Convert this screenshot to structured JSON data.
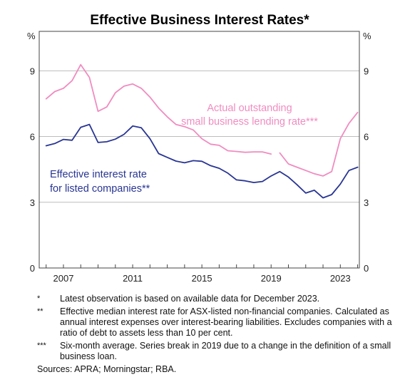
{
  "chart_data": {
    "type": "line",
    "title": "Effective Business Interest Rates*",
    "y_unit_left": "%",
    "y_unit_right": "%",
    "ylim": [
      0,
      10.8
    ],
    "y_ticks": [
      0,
      3,
      6,
      9
    ],
    "xlim": [
      2005.6,
      2024.1
    ],
    "x_ticks": [
      2007,
      2011,
      2015,
      2019,
      2023
    ],
    "grid": true,
    "series": [
      {
        "name": "Actual outstanding small business lending rate***",
        "label_lines": [
          "Actual outstanding",
          "small business lending rate***"
        ],
        "color": "#f08cc0",
        "segments": [
          [
            [
              2006.0,
              7.72
            ],
            [
              2006.5,
              8.05
            ],
            [
              2007.0,
              8.2
            ],
            [
              2007.5,
              8.55
            ],
            [
              2008.0,
              9.28
            ],
            [
              2008.5,
              8.7
            ],
            [
              2009.0,
              7.15
            ],
            [
              2009.5,
              7.35
            ],
            [
              2010.0,
              8.0
            ],
            [
              2010.5,
              8.3
            ],
            [
              2011.0,
              8.4
            ],
            [
              2011.5,
              8.2
            ],
            [
              2012.0,
              7.8
            ],
            [
              2012.5,
              7.3
            ],
            [
              2013.0,
              6.9
            ],
            [
              2013.5,
              6.55
            ],
            [
              2014.0,
              6.45
            ],
            [
              2014.5,
              6.3
            ],
            [
              2015.0,
              5.9
            ],
            [
              2015.5,
              5.65
            ],
            [
              2016.0,
              5.6
            ],
            [
              2016.5,
              5.35
            ],
            [
              2017.0,
              5.32
            ],
            [
              2017.5,
              5.28
            ],
            [
              2018.0,
              5.3
            ],
            [
              2018.5,
              5.3
            ],
            [
              2019.0,
              5.2
            ]
          ],
          [
            [
              2019.5,
              5.25
            ],
            [
              2020.0,
              4.75
            ],
            [
              2020.5,
              4.6
            ],
            [
              2021.0,
              4.45
            ],
            [
              2021.5,
              4.3
            ],
            [
              2022.0,
              4.2
            ],
            [
              2022.5,
              4.4
            ],
            [
              2023.0,
              5.9
            ],
            [
              2023.5,
              6.6
            ],
            [
              2024.0,
              7.1
            ]
          ]
        ]
      },
      {
        "name": "Effective interest rate for listed companies**",
        "label_lines": [
          "Effective interest rate",
          "for listed companies**"
        ],
        "color": "#283593",
        "segments": [
          [
            [
              2006.0,
              5.58
            ],
            [
              2006.5,
              5.68
            ],
            [
              2007.0,
              5.87
            ],
            [
              2007.5,
              5.83
            ],
            [
              2008.0,
              6.42
            ],
            [
              2008.5,
              6.55
            ],
            [
              2009.0,
              5.73
            ],
            [
              2009.5,
              5.76
            ],
            [
              2010.0,
              5.88
            ],
            [
              2010.5,
              6.1
            ],
            [
              2011.0,
              6.48
            ],
            [
              2011.5,
              6.4
            ],
            [
              2012.0,
              5.9
            ],
            [
              2012.5,
              5.22
            ],
            [
              2013.0,
              5.05
            ],
            [
              2013.5,
              4.88
            ],
            [
              2014.0,
              4.8
            ],
            [
              2014.5,
              4.9
            ],
            [
              2015.0,
              4.87
            ],
            [
              2015.5,
              4.67
            ],
            [
              2016.0,
              4.55
            ],
            [
              2016.5,
              4.33
            ],
            [
              2017.0,
              4.02
            ],
            [
              2017.5,
              3.98
            ],
            [
              2018.0,
              3.9
            ],
            [
              2018.5,
              3.95
            ],
            [
              2019.0,
              4.2
            ],
            [
              2019.5,
              4.4
            ],
            [
              2020.0,
              4.15
            ],
            [
              2020.5,
              3.8
            ],
            [
              2021.0,
              3.42
            ],
            [
              2021.5,
              3.55
            ],
            [
              2022.0,
              3.2
            ],
            [
              2022.5,
              3.35
            ],
            [
              2023.0,
              3.83
            ],
            [
              2023.5,
              4.45
            ],
            [
              2024.0,
              4.6
            ]
          ]
        ]
      }
    ]
  },
  "footnotes": [
    {
      "marker": "*",
      "text": "Latest observation is based on available data for December 2023."
    },
    {
      "marker": "**",
      "text": "Effective median interest rate for ASX-listed non-financial companies. Calculated as annual interest expenses over interest-bearing liabilities. Excludes companies with a ratio of debt to assets less than 10 per cent."
    },
    {
      "marker": "***",
      "text": "Six-month average. Series break in 2019 due to a change in the definition of a small business loan."
    }
  ],
  "sources": "Sources: APRA; Morningstar; RBA."
}
